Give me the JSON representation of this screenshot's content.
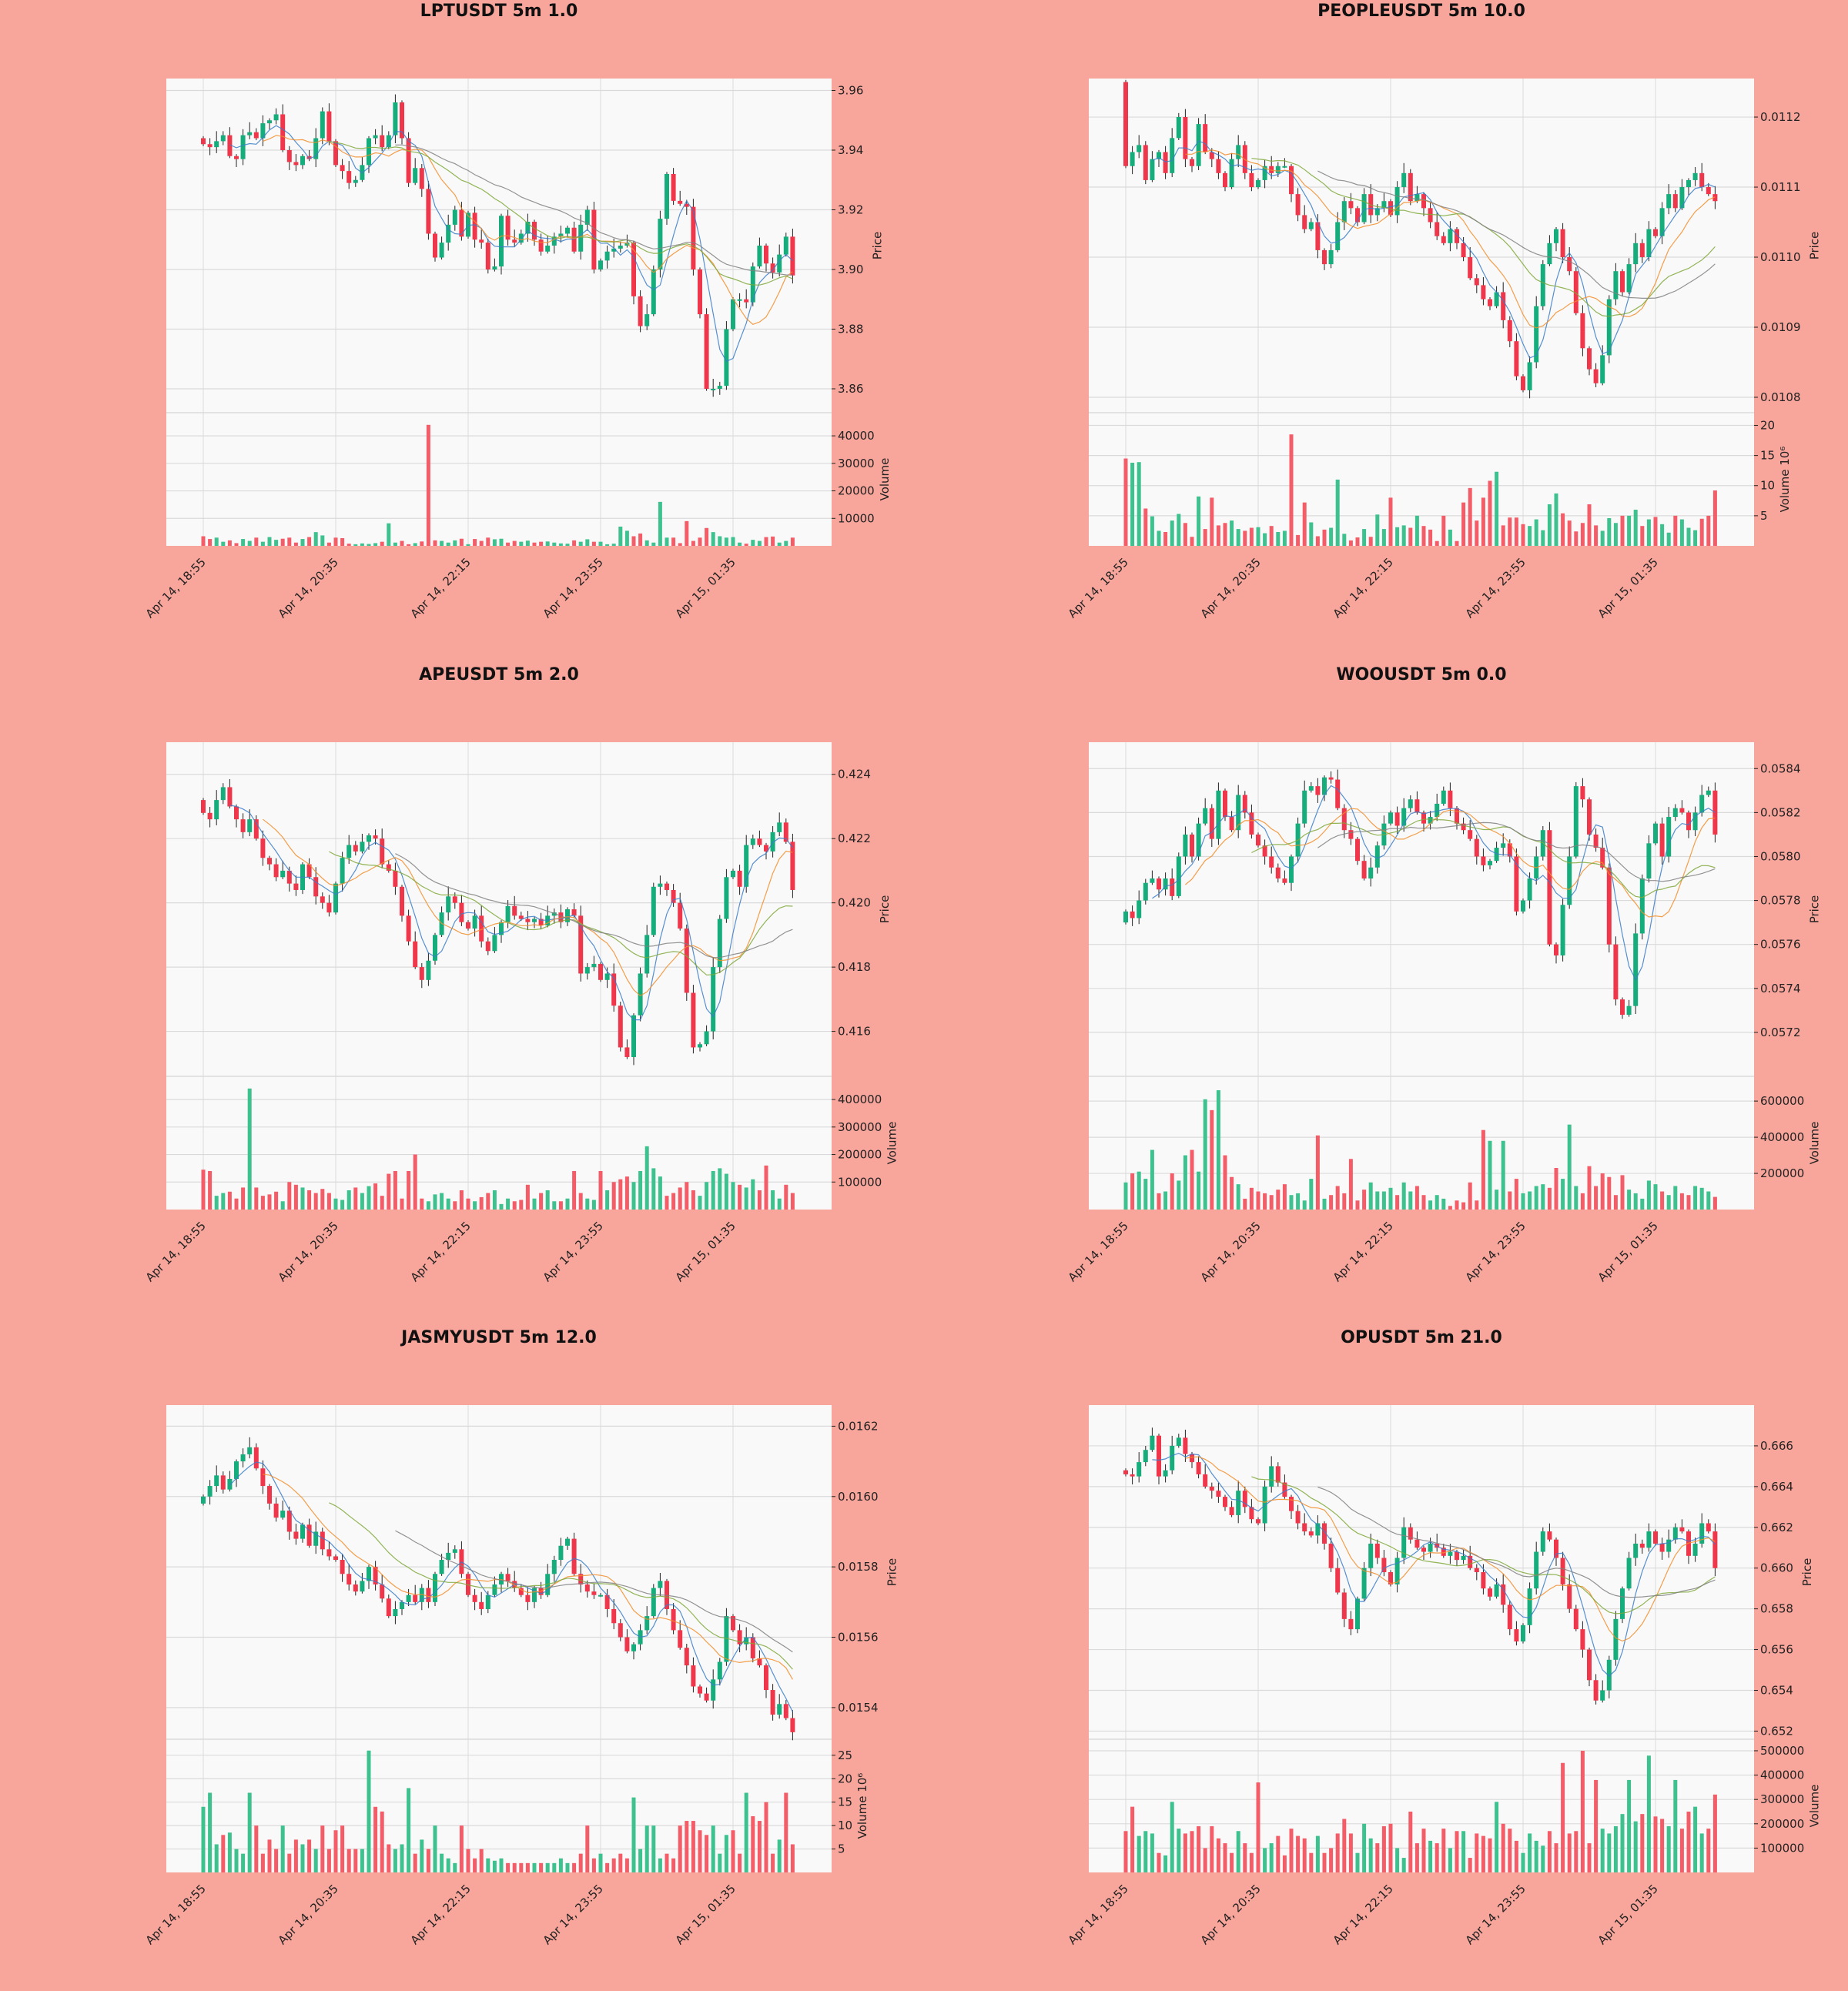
{
  "colors": {
    "background": "#F8A59B",
    "plot_bg": "#F9F9F9",
    "grid": "#DADADA",
    "up": "#14AD7B",
    "down": "#F0364A",
    "vol_up": "#3DC28F",
    "vol_down": "#F45D68",
    "ma": [
      "#3A7DC9",
      "#F28E2B",
      "#7FA83A",
      "#808080"
    ]
  },
  "x_tick_labels": [
    "Apr 14, 18:55",
    "Apr 14, 20:35",
    "Apr 14, 22:15",
    "Apr 14, 23:55",
    "Apr 15, 01:35"
  ],
  "price_label": "Price",
  "chart_data": [
    {
      "type": "candlestick",
      "title": "LPTUSDT 5m 1.0",
      "ylim": [
        3.852,
        3.964
      ],
      "price_ticks": [
        "3.86",
        "3.88",
        "3.90",
        "3.92",
        "3.94",
        "3.96"
      ],
      "volume_ticks": [
        "10000",
        "20000",
        "30000",
        "40000"
      ],
      "volume_max": 46000,
      "volume_label": "Volume",
      "volume_exponent": "",
      "open0": 3.944,
      "close": [
        3.942,
        3.941,
        3.943,
        3.945,
        3.938,
        3.937,
        3.945,
        3.946,
        3.944,
        3.949,
        3.95,
        3.952,
        3.94,
        3.936,
        3.935,
        3.938,
        3.937,
        3.944,
        3.953,
        3.943,
        3.935,
        3.933,
        3.929,
        3.93,
        3.935,
        3.944,
        3.945,
        3.941,
        3.945,
        3.956,
        3.944,
        3.929,
        3.934,
        3.927,
        3.912,
        3.904,
        3.909,
        3.915,
        3.92,
        3.911,
        3.919,
        3.91,
        3.909,
        3.9,
        3.901,
        3.918,
        3.91,
        3.909,
        3.912,
        3.916,
        3.91,
        3.906,
        3.908,
        3.911,
        3.912,
        3.914,
        3.906,
        3.915,
        3.92,
        3.9,
        3.903,
        3.906,
        3.907,
        3.908,
        3.909,
        3.891,
        3.881,
        3.885,
        3.9,
        3.917,
        3.932,
        3.923,
        3.922,
        3.921,
        3.9,
        3.885,
        3.86,
        3.86,
        3.861,
        3.88,
        3.89,
        3.89,
        3.889,
        3.901,
        3.908,
        3.902,
        3.899,
        3.905,
        3.911,
        3.898
      ],
      "volume": [
        3500,
        2500,
        3000,
        1500,
        2000,
        1000,
        2500,
        1800,
        3000,
        1500,
        3200,
        2200,
        2600,
        3000,
        1200,
        2500,
        3200,
        5000,
        3800,
        1200,
        3000,
        2800,
        800,
        600,
        900,
        700,
        1000,
        1500,
        8200,
        1200,
        1800,
        600,
        1000,
        1600,
        44000,
        2000,
        1800,
        1200,
        2000,
        2600,
        600,
        2500,
        1800,
        3000,
        2400,
        2600,
        1200,
        1800,
        1500,
        1900,
        1200,
        1500,
        1600,
        1200,
        900,
        800,
        2000,
        1500,
        2400,
        1500,
        1500,
        600,
        800,
        7000,
        5500,
        3500,
        4500,
        2000,
        1200,
        16000,
        3000,
        3000,
        1000,
        9000,
        1800,
        3000,
        6500,
        5000,
        3500,
        3000,
        3200,
        1200,
        800,
        2200,
        1800,
        3200,
        3400,
        1200,
        1800,
        3000
      ]
    },
    {
      "type": "candlestick",
      "title": "PEOPLEUSDT 5m 10.0",
      "ylim": [
        0.010778,
        0.011255
      ],
      "price_ticks": [
        "0.0108",
        "0.0109",
        "0.0110",
        "0.0111",
        "0.0112"
      ],
      "volume_ticks": [
        "5",
        "10",
        "15",
        "20"
      ],
      "volume_max": 21,
      "volume_label": "Volume",
      "volume_exponent": "10⁶",
      "open0": 0.01125,
      "close": [
        0.01113,
        0.01115,
        0.01116,
        0.01111,
        0.01114,
        0.01115,
        0.01112,
        0.01117,
        0.0112,
        0.01114,
        0.01113,
        0.01119,
        0.01115,
        0.01114,
        0.01112,
        0.0111,
        0.01114,
        0.01116,
        0.01112,
        0.0111,
        0.01111,
        0.01113,
        0.01112,
        0.01113,
        0.01113,
        0.01109,
        0.01106,
        0.01104,
        0.01105,
        0.01101,
        0.01099,
        0.01101,
        0.01105,
        0.01108,
        0.01107,
        0.01105,
        0.01109,
        0.01106,
        0.01107,
        0.01108,
        0.01106,
        0.0111,
        0.01112,
        0.01108,
        0.01109,
        0.01107,
        0.01105,
        0.01103,
        0.01102,
        0.01104,
        0.01102,
        0.011,
        0.01097,
        0.01096,
        0.01094,
        0.01093,
        0.01095,
        0.01091,
        0.01088,
        0.01083,
        0.01081,
        0.01085,
        0.01093,
        0.01099,
        0.01102,
        0.01104,
        0.011,
        0.01098,
        0.01092,
        0.01087,
        0.01084,
        0.01082,
        0.01086,
        0.01094,
        0.01098,
        0.01095,
        0.01099,
        0.01102,
        0.011,
        0.01104,
        0.01103,
        0.01107,
        0.01109,
        0.01107,
        0.0111,
        0.01111,
        0.01112,
        0.0111,
        0.01109,
        0.01108
      ],
      "volume": [
        14.5,
        13.8,
        13.9,
        6.2,
        4.9,
        2.5,
        2.3,
        4.2,
        5.3,
        3.8,
        1.5,
        8.2,
        2.8,
        8.0,
        3.4,
        3.8,
        4.2,
        2.8,
        2.5,
        3.0,
        3.1,
        2.1,
        3.3,
        2.3,
        2.5,
        18.5,
        1.8,
        7.2,
        3.9,
        1.6,
        2.7,
        3.0,
        11.0,
        2.0,
        0.9,
        1.4,
        2.8,
        1.5,
        5.2,
        2.8,
        8.0,
        3.1,
        3.4,
        3.0,
        5.0,
        3.3,
        2.7,
        0.8,
        5.0,
        2.7,
        0.8,
        7.2,
        9.6,
        4.2,
        8.0,
        10.8,
        12.3,
        3.4,
        4.7,
        4.7,
        3.6,
        3.3,
        4.4,
        2.6,
        6.9,
        8.7,
        5.4,
        4.2,
        2.4,
        3.8,
        6.9,
        3.4,
        2.5,
        4.6,
        3.8,
        5.0,
        5.0,
        6.0,
        3.3,
        4.4,
        4.8,
        3.6,
        2.2,
        5.0,
        4.4,
        3.0,
        2.6,
        4.5,
        5.0,
        9.2
      ]
    },
    {
      "type": "candlestick",
      "title": "APEUSDT 5m 2.0",
      "ylim": [
        0.4146,
        0.425
      ],
      "price_ticks": [
        "0.416",
        "0.418",
        "0.420",
        "0.422",
        "0.424"
      ],
      "volume_ticks": [
        "100000",
        "200000",
        "300000",
        "400000"
      ],
      "volume_max": 460000,
      "volume_label": "Volume",
      "volume_exponent": "",
      "open0": 0.4232,
      "close": [
        0.4228,
        0.4226,
        0.4232,
        0.4236,
        0.423,
        0.4226,
        0.4222,
        0.4226,
        0.422,
        0.4214,
        0.4212,
        0.4208,
        0.421,
        0.4206,
        0.4204,
        0.4212,
        0.4208,
        0.4202,
        0.42,
        0.4197,
        0.4206,
        0.4214,
        0.4218,
        0.4216,
        0.4219,
        0.4221,
        0.422,
        0.4212,
        0.421,
        0.4205,
        0.4196,
        0.4188,
        0.418,
        0.4176,
        0.4182,
        0.419,
        0.4197,
        0.4202,
        0.42,
        0.4194,
        0.4192,
        0.4196,
        0.4188,
        0.4185,
        0.419,
        0.4194,
        0.4199,
        0.4196,
        0.4195,
        0.4194,
        0.4195,
        0.4193,
        0.4196,
        0.4197,
        0.4194,
        0.4198,
        0.4196,
        0.4178,
        0.418,
        0.4181,
        0.4176,
        0.4178,
        0.4168,
        0.4155,
        0.4152,
        0.4165,
        0.4178,
        0.419,
        0.4205,
        0.4206,
        0.4204,
        0.42,
        0.4192,
        0.4172,
        0.4155,
        0.4156,
        0.416,
        0.418,
        0.4195,
        0.4208,
        0.421,
        0.4205,
        0.4218,
        0.422,
        0.4218,
        0.4216,
        0.4222,
        0.4225,
        0.4219,
        0.4204
      ],
      "volume": [
        145000,
        140000,
        50000,
        60000,
        65000,
        40000,
        80000,
        440000,
        80000,
        50000,
        55000,
        65000,
        30000,
        100000,
        90000,
        80000,
        70000,
        60000,
        75000,
        60000,
        40000,
        35000,
        70000,
        80000,
        60000,
        85000,
        95000,
        50000,
        130000,
        140000,
        40000,
        140000,
        200000,
        40000,
        30000,
        55000,
        60000,
        40000,
        30000,
        70000,
        40000,
        30000,
        45000,
        60000,
        70000,
        20000,
        40000,
        30000,
        35000,
        90000,
        40000,
        60000,
        70000,
        30000,
        30000,
        40000,
        140000,
        60000,
        40000,
        35000,
        140000,
        70000,
        100000,
        110000,
        120000,
        100000,
        140000,
        230000,
        150000,
        120000,
        50000,
        60000,
        80000,
        100000,
        70000,
        50000,
        100000,
        140000,
        150000,
        130000,
        100000,
        90000,
        80000,
        110000,
        70000,
        160000,
        70000,
        40000,
        90000,
        60000
      ]
    },
    {
      "type": "candlestick",
      "title": "WOOUSDT 5m 0.0",
      "ylim": [
        0.057,
        0.05852
      ],
      "price_ticks": [
        "0.0572",
        "0.0574",
        "0.0576",
        "0.0578",
        "0.0580",
        "0.0582",
        "0.0584"
      ],
      "volume_ticks": [
        "200000",
        "400000",
        "600000"
      ],
      "volume_max": 700000,
      "volume_label": "Volume",
      "volume_exponent": "",
      "open0": 0.0577,
      "close": [
        0.05775,
        0.05772,
        0.0578,
        0.05788,
        0.0579,
        0.05785,
        0.0579,
        0.05782,
        0.058,
        0.0581,
        0.058,
        0.05815,
        0.05822,
        0.05808,
        0.0583,
        0.05818,
        0.05812,
        0.05828,
        0.0582,
        0.0581,
        0.05805,
        0.058,
        0.05795,
        0.0579,
        0.05788,
        0.058,
        0.05815,
        0.0583,
        0.05832,
        0.05828,
        0.05836,
        0.05835,
        0.05822,
        0.05812,
        0.05808,
        0.05798,
        0.0579,
        0.05795,
        0.05805,
        0.05815,
        0.0582,
        0.05814,
        0.05822,
        0.05826,
        0.0582,
        0.05815,
        0.05818,
        0.05824,
        0.0583,
        0.05822,
        0.05815,
        0.05812,
        0.05808,
        0.058,
        0.05796,
        0.05798,
        0.05804,
        0.05806,
        0.058,
        0.05775,
        0.0578,
        0.0579,
        0.058,
        0.05812,
        0.0576,
        0.05755,
        0.05778,
        0.058,
        0.05832,
        0.05826,
        0.0581,
        0.05804,
        0.05795,
        0.0576,
        0.05735,
        0.05728,
        0.05732,
        0.05765,
        0.0579,
        0.05806,
        0.05815,
        0.058,
        0.05818,
        0.05822,
        0.0582,
        0.05812,
        0.0582,
        0.05828,
        0.0583,
        0.0581
      ],
      "volume": [
        150000,
        200000,
        210000,
        170000,
        330000,
        90000,
        100000,
        200000,
        160000,
        300000,
        330000,
        210000,
        610000,
        550000,
        660000,
        300000,
        180000,
        140000,
        60000,
        120000,
        100000,
        90000,
        80000,
        110000,
        140000,
        80000,
        90000,
        50000,
        170000,
        410000,
        60000,
        80000,
        130000,
        90000,
        280000,
        50000,
        110000,
        150000,
        100000,
        100000,
        120000,
        80000,
        150000,
        100000,
        130000,
        80000,
        50000,
        80000,
        60000,
        20000,
        50000,
        40000,
        150000,
        50000,
        440000,
        380000,
        110000,
        380000,
        100000,
        170000,
        90000,
        100000,
        130000,
        140000,
        120000,
        230000,
        170000,
        470000,
        130000,
        90000,
        240000,
        130000,
        200000,
        180000,
        80000,
        190000,
        110000,
        90000,
        60000,
        160000,
        140000,
        100000,
        80000,
        130000,
        90000,
        80000,
        130000,
        120000,
        100000,
        70000
      ]
    },
    {
      "type": "candlestick",
      "title": "JASMYUSDT 5m 12.0",
      "ylim": [
        0.01531,
        0.01626
      ],
      "price_ticks": [
        "0.0154",
        "0.0156",
        "0.0158",
        "0.0160",
        "0.0162"
      ],
      "volume_ticks": [
        "5",
        "10",
        "15",
        "20",
        "25"
      ],
      "volume_max": 27,
      "volume_label": "Volume",
      "volume_exponent": "10⁶",
      "open0": 0.01598,
      "close": [
        0.016,
        0.01603,
        0.01606,
        0.01602,
        0.01605,
        0.0161,
        0.01612,
        0.01614,
        0.01608,
        0.01603,
        0.01598,
        0.01594,
        0.01596,
        0.0159,
        0.01588,
        0.01592,
        0.01586,
        0.0159,
        0.01585,
        0.01583,
        0.01582,
        0.01578,
        0.01575,
        0.01573,
        0.01576,
        0.0158,
        0.01575,
        0.01571,
        0.01566,
        0.01568,
        0.0157,
        0.01572,
        0.0157,
        0.01574,
        0.0157,
        0.01578,
        0.01582,
        0.01584,
        0.01585,
        0.01578,
        0.01572,
        0.0157,
        0.01568,
        0.01572,
        0.01575,
        0.01578,
        0.01576,
        0.01574,
        0.01572,
        0.0157,
        0.01574,
        0.01572,
        0.01578,
        0.01582,
        0.01586,
        0.01588,
        0.01578,
        0.01575,
        0.01573,
        0.01572,
        0.01572,
        0.01568,
        0.01564,
        0.0156,
        0.01556,
        0.01558,
        0.01562,
        0.01566,
        0.01574,
        0.01576,
        0.01568,
        0.01562,
        0.01557,
        0.01552,
        0.01546,
        0.01544,
        0.01542,
        0.01548,
        0.01553,
        0.01566,
        0.01562,
        0.01558,
        0.0156,
        0.01554,
        0.01552,
        0.01545,
        0.01538,
        0.01541,
        0.01537,
        0.01533
      ],
      "volume": [
        14,
        17,
        6,
        8,
        8.5,
        5,
        4,
        17,
        10,
        4,
        7,
        5,
        10,
        4,
        7,
        6,
        7,
        5,
        10,
        5,
        9,
        10,
        5,
        5,
        5,
        26,
        14,
        13,
        6,
        5,
        6,
        18,
        4,
        7,
        5,
        10,
        4,
        3,
        2,
        10,
        5,
        3,
        5,
        3,
        2.5,
        3,
        2,
        2,
        2,
        2,
        2,
        2,
        2,
        2,
        3,
        2,
        2,
        4,
        10,
        3,
        4,
        2,
        3,
        4,
        3,
        16,
        5,
        10,
        10,
        3,
        4,
        3,
        10,
        11,
        11,
        9,
        8,
        10,
        4,
        8,
        9,
        4,
        17,
        12,
        11,
        15,
        4,
        7,
        17,
        6
      ]
    },
    {
      "type": "candlestick",
      "title": "OPUSDT 5m 21.0",
      "ylim": [
        0.6516,
        0.668
      ],
      "price_ticks": [
        "0.652",
        "0.654",
        "0.656",
        "0.658",
        "0.660",
        "0.662",
        "0.664",
        "0.666"
      ],
      "volume_ticks": [
        "100000",
        "200000",
        "300000",
        "400000",
        "500000"
      ],
      "volume_max": 520000,
      "volume_label": "Volume",
      "volume_exponent": "",
      "open0": 0.6648,
      "close": [
        0.6646,
        0.6645,
        0.6652,
        0.6658,
        0.6665,
        0.6645,
        0.6648,
        0.666,
        0.6664,
        0.6656,
        0.6652,
        0.6646,
        0.664,
        0.6638,
        0.6635,
        0.663,
        0.6626,
        0.6638,
        0.663,
        0.6624,
        0.6622,
        0.664,
        0.665,
        0.6642,
        0.6635,
        0.6628,
        0.6622,
        0.6618,
        0.6616,
        0.6622,
        0.6612,
        0.66,
        0.6588,
        0.6575,
        0.657,
        0.6585,
        0.66,
        0.6612,
        0.6605,
        0.6598,
        0.6592,
        0.6605,
        0.662,
        0.6614,
        0.661,
        0.6608,
        0.6612,
        0.661,
        0.6606,
        0.6608,
        0.6604,
        0.6606,
        0.66,
        0.6598,
        0.659,
        0.6586,
        0.6592,
        0.6582,
        0.657,
        0.6564,
        0.6572,
        0.659,
        0.6608,
        0.6618,
        0.6614,
        0.6605,
        0.6592,
        0.658,
        0.657,
        0.656,
        0.6545,
        0.6535,
        0.654,
        0.6555,
        0.6575,
        0.659,
        0.6605,
        0.6612,
        0.661,
        0.6618,
        0.6612,
        0.6608,
        0.6614,
        0.662,
        0.6618,
        0.6606,
        0.6612,
        0.6622,
        0.6618,
        0.66
      ],
      "volume": [
        170000,
        270000,
        150000,
        170000,
        160000,
        80000,
        70000,
        290000,
        180000,
        160000,
        170000,
        190000,
        100000,
        190000,
        140000,
        120000,
        80000,
        170000,
        120000,
        80000,
        370000,
        100000,
        120000,
        150000,
        70000,
        180000,
        150000,
        140000,
        80000,
        150000,
        80000,
        100000,
        160000,
        220000,
        160000,
        80000,
        200000,
        140000,
        120000,
        190000,
        200000,
        100000,
        60000,
        250000,
        120000,
        180000,
        130000,
        120000,
        180000,
        100000,
        170000,
        170000,
        60000,
        160000,
        150000,
        140000,
        290000,
        200000,
        180000,
        130000,
        80000,
        160000,
        130000,
        110000,
        170000,
        120000,
        450000,
        160000,
        170000,
        500000,
        120000,
        380000,
        180000,
        160000,
        190000,
        240000,
        380000,
        210000,
        240000,
        480000,
        230000,
        220000,
        190000,
        380000,
        180000,
        250000,
        270000,
        160000,
        180000,
        320000
      ]
    }
  ]
}
